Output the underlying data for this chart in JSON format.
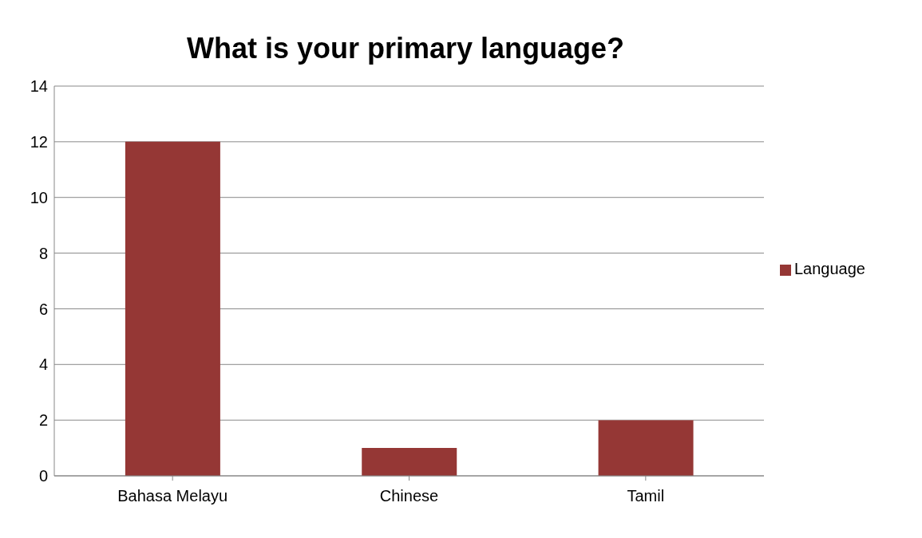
{
  "chart_data": {
    "type": "bar",
    "title": "What is your primary language?",
    "categories": [
      "Bahasa Melayu",
      "Chinese",
      "Tamil"
    ],
    "series": [
      {
        "name": "Language",
        "color": "#953735",
        "values": [
          12,
          1,
          2
        ]
      }
    ],
    "ylim": [
      0,
      14
    ],
    "yticks": [
      0,
      2,
      4,
      6,
      8,
      10,
      12,
      14
    ],
    "grid": "y",
    "legend": "right"
  }
}
